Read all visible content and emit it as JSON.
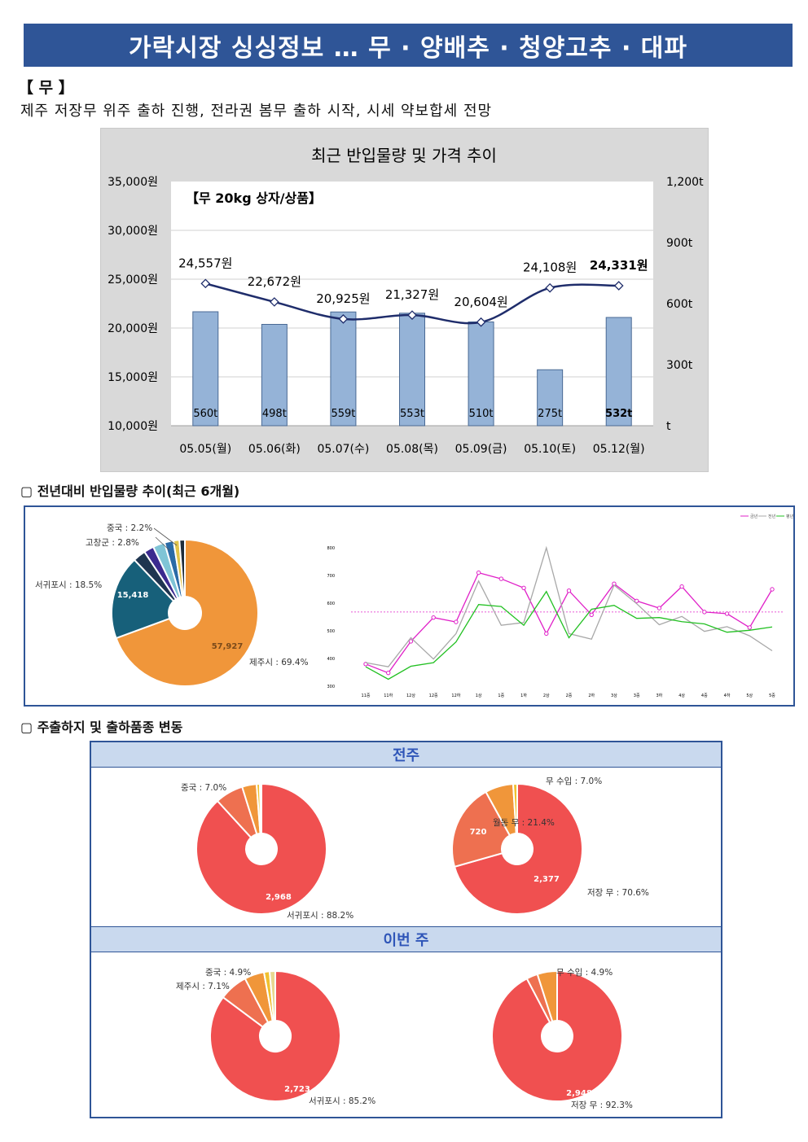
{
  "banner": {
    "title": "가락시장 싱싱정보 … 무 · 양배추 · 청양고추 · 대파"
  },
  "section": {
    "tag": "【 무 】",
    "summary": "제주 저장무 위주 출하 진행, 전라권 봄무 출하 시작, 시세 약보합세 전망"
  },
  "chart_data": [
    {
      "type": "bar+line",
      "title": "최근 반입물량 및 가격 추이",
      "subtitle": "【무 20kg 상자/상품】",
      "categories": [
        "05.05(월)",
        "05.06(화)",
        "05.07(수)",
        "05.08(목)",
        "05.09(금)",
        "05.10(토)",
        "05.12(월)"
      ],
      "price_values": [
        24557,
        22672,
        20925,
        21327,
        20604,
        24108,
        24331
      ],
      "price_labels": [
        "24,557원",
        "22,672원",
        "20,925원",
        "21,327원",
        "20,604원",
        "24,108원",
        "24,331원"
      ],
      "volume_values": [
        560,
        498,
        559,
        553,
        510,
        275,
        532
      ],
      "volume_labels": [
        "560t",
        "498t",
        "559t",
        "553t",
        "510t",
        "275t",
        "532t"
      ],
      "y_left_ticks": [
        "35,000원",
        "30,000원",
        "25,000원",
        "20,000원",
        "15,000원",
        "10,000원"
      ],
      "y_left_range": [
        10000,
        35000
      ],
      "y_right_ticks": [
        "1,200t",
        "900t",
        "600t",
        "300t",
        "t"
      ],
      "y_right_range": [
        0,
        1200
      ],
      "colors": {
        "bar": "#95b3d7",
        "line": "#1f2d6b"
      }
    },
    {
      "type": "pie",
      "slices": [
        {
          "label": "제주시 : 69.4%",
          "value": 69.4,
          "inner_label": "57,927",
          "color": "#f0963a"
        },
        {
          "label": "서귀포시 : 18.5%",
          "value": 18.5,
          "inner_label": "15,418",
          "color": "#17607a"
        },
        {
          "label": "고창군 : 2.8%",
          "value": 2.8,
          "color": "#1f3550"
        },
        {
          "label": "중국 : 2.2%",
          "value": 2.2,
          "color": "#3b2a8f"
        },
        {
          "label": "",
          "value": 2.6,
          "color": "#7fc4d6"
        },
        {
          "label": "",
          "value": 2.0,
          "color": "#2a6aa6"
        },
        {
          "label": "",
          "value": 1.3,
          "color": "#e0c34a"
        },
        {
          "label": "",
          "value": 1.2,
          "color": "#1f2d3a"
        }
      ]
    },
    {
      "type": "line",
      "legend": [
        "금년",
        "전년",
        "평년"
      ],
      "x": [
        "11중",
        "11하",
        "12상",
        "12중",
        "12하",
        "1상",
        "1중",
        "1하",
        "2상",
        "2중",
        "2하",
        "3상",
        "3중",
        "3하",
        "4상",
        "4중",
        "4하",
        "5상",
        "5중"
      ],
      "y_ticks": [
        "800",
        "700",
        "600",
        "500",
        "400",
        "300"
      ],
      "ylim": [
        300,
        800
      ],
      "series": [
        {
          "name": "금년",
          "color": "#e020c8",
          "values": [
            380,
            348,
            462,
            548,
            532,
            710,
            688,
            655,
            490,
            645,
            558,
            670,
            608,
            582,
            660,
            568,
            562,
            512,
            650
          ]
        },
        {
          "name": "전년",
          "color": "#a8a8a8",
          "values": [
            385,
            370,
            475,
            398,
            490,
            680,
            520,
            530,
            800,
            490,
            470,
            665,
            598,
            522,
            552,
            498,
            515,
            482,
            428
          ]
        },
        {
          "name": "평년",
          "color": "#22c022",
          "values": [
            370,
            325,
            372,
            385,
            460,
            595,
            588,
            520,
            642,
            475,
            578,
            592,
            545,
            548,
            533,
            525,
            495,
            502,
            514
          ]
        }
      ],
      "reference_line": 568,
      "reference_color": "#e020c8"
    },
    {
      "type": "pie",
      "slices": [
        {
          "label": "서귀포시 : 88.2%",
          "value": 88.2,
          "inner_label": "2,968",
          "color": "#f05050"
        },
        {
          "label": "중국 : 7.0%",
          "value": 7.0,
          "color": "#ee7050"
        },
        {
          "label": "",
          "value": 3.6,
          "color": "#f0963a"
        },
        {
          "label": "",
          "value": 0.8,
          "color": "#f0c030"
        },
        {
          "label": "",
          "value": 0.4,
          "color": "#e8d890"
        }
      ]
    },
    {
      "type": "pie",
      "slices": [
        {
          "label": "저장 무 : 70.6%",
          "value": 70.6,
          "inner_label": "2,377",
          "color": "#f05050"
        },
        {
          "label": "월동 무 : 21.4%",
          "value": 21.4,
          "inner_label": "720",
          "color": "#ee7050"
        },
        {
          "label": "무 수입 : 7.0%",
          "value": 7.0,
          "color": "#f0963a"
        },
        {
          "label": "",
          "value": 1.0,
          "color": "#f0c030"
        }
      ]
    },
    {
      "type": "pie",
      "slices": [
        {
          "label": "서귀포시 : 85.2%",
          "value": 85.2,
          "inner_label": "2,723",
          "color": "#f05050"
        },
        {
          "label": "제주시 : 7.1%",
          "value": 7.1,
          "color": "#ee7050"
        },
        {
          "label": "중국 : 4.9%",
          "value": 4.9,
          "color": "#f0963a"
        },
        {
          "label": "",
          "value": 1.4,
          "color": "#f0c030"
        },
        {
          "label": "",
          "value": 1.4,
          "color": "#e8d890"
        }
      ]
    },
    {
      "type": "pie",
      "slices": [
        {
          "label": "저장 무 : 92.3%",
          "value": 92.3,
          "inner_label": "2,948",
          "color": "#f05050"
        },
        {
          "label": "",
          "value": 2.8,
          "color": "#ee7050"
        },
        {
          "label": "무 수입 : 4.9%",
          "value": 4.9,
          "color": "#f0963a"
        }
      ]
    }
  ],
  "headings": {
    "yoy": "▢ 전년대비 반입물량 추이(최근 6개월)",
    "origin": "▢ 주출하지 및 출하품종 변동"
  },
  "bands": {
    "last_week": "전주",
    "this_week": "이번 주"
  }
}
